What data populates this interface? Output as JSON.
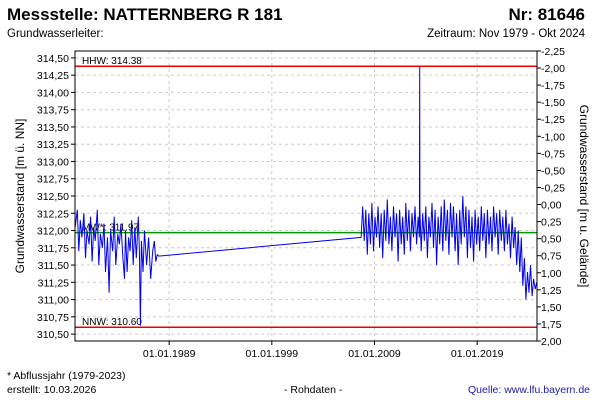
{
  "header": {
    "station_title": "Messstelle: NATTERNBERG R 181",
    "number": "Nr: 81646",
    "aquifer": "Grundwasserleiter:",
    "period": "Zeitraum: Nov 1979 - Okt 2024"
  },
  "footer": {
    "note": "* Abflussjahr (1979-2023)",
    "created": "erstellt:  10.03.2026",
    "raw": "- Rohdaten -",
    "source": "Quelle:  www.lfu.bayern.de"
  },
  "colors": {
    "series": "#0000ee",
    "hhw": "#ee0000",
    "nnw": "#ee0000",
    "mw": "#009900",
    "grid": "#cccccc"
  },
  "chart_data": {
    "type": "line",
    "ylabel_left": "Grundwasserstand [m ü. NN]",
    "ylabel_right": "Grundwasserstand [m u. Gelände]",
    "xlim": [
      1979.83,
      2024.83
    ],
    "ylim": [
      310.4,
      314.6
    ],
    "ylim_right": [
      2.0,
      -2.25
    ],
    "left_ticks": [
      "310,50",
      "310,75",
      "311,00",
      "311,25",
      "311,50",
      "311,75",
      "312,00",
      "312,25",
      "312,50",
      "312,75",
      "313,00",
      "313,25",
      "313,50",
      "313,75",
      "314,00",
      "314,25",
      "314,50"
    ],
    "right_ticks": [
      "2,00",
      "1,75",
      "1,50",
      "1,25",
      "1,00",
      "0,75",
      "0,50",
      "0,25",
      "0,00",
      "-0,25",
      "-0,50",
      "-0,75",
      "-1,00",
      "-1,25",
      "-1,50",
      "-1,75",
      "-2,00",
      "-2,25"
    ],
    "x_ticks": [
      {
        "label": "01.01.1989",
        "value": 1989.0
      },
      {
        "label": "01.01.1999",
        "value": 1999.0
      },
      {
        "label": "01.01.2009",
        "value": 2009.0
      },
      {
        "label": "01.01.2019",
        "value": 2019.0
      }
    ],
    "grid": true,
    "reference_lines": [
      {
        "label": "HHW: 314.38",
        "value": 314.38,
        "kind": "hhw"
      },
      {
        "label": "MW*: 311.97",
        "value": 311.97,
        "kind": "mw"
      },
      {
        "label": "NNW: 310.60",
        "value": 310.6,
        "kind": "nnw"
      }
    ],
    "series": [
      {
        "points": [
          [
            1979.85,
            312.05
          ],
          [
            1980.05,
            312.3
          ],
          [
            1980.2,
            311.7
          ],
          [
            1980.35,
            312.15
          ],
          [
            1980.5,
            311.9
          ],
          [
            1980.7,
            312.25
          ],
          [
            1980.85,
            311.6
          ],
          [
            1981.0,
            312.0
          ],
          [
            1981.2,
            311.8
          ],
          [
            1981.35,
            312.2
          ],
          [
            1981.5,
            311.55
          ],
          [
            1981.65,
            312.05
          ],
          [
            1981.8,
            311.85
          ],
          [
            1982.0,
            312.3
          ],
          [
            1982.15,
            311.5
          ],
          [
            1982.3,
            311.95
          ],
          [
            1982.5,
            311.75
          ],
          [
            1982.65,
            312.1
          ],
          [
            1982.8,
            311.4
          ],
          [
            1983.0,
            311.9
          ],
          [
            1983.15,
            311.1
          ],
          [
            1983.3,
            312.0
          ],
          [
            1983.5,
            311.7
          ],
          [
            1983.65,
            312.2
          ],
          [
            1983.8,
            311.5
          ],
          [
            1984.0,
            311.95
          ],
          [
            1984.15,
            311.8
          ],
          [
            1984.3,
            312.1
          ],
          [
            1984.5,
            311.6
          ],
          [
            1984.65,
            311.3
          ],
          [
            1984.75,
            312.0
          ],
          [
            1984.9,
            311.4
          ],
          [
            1985.05,
            311.9
          ],
          [
            1985.2,
            311.7
          ],
          [
            1985.35,
            312.15
          ],
          [
            1985.5,
            311.5
          ],
          [
            1985.65,
            312.05
          ],
          [
            1985.8,
            311.6
          ],
          [
            1986.0,
            312.2
          ],
          [
            1986.1,
            311.7
          ],
          [
            1986.2,
            310.62
          ],
          [
            1986.3,
            311.85
          ],
          [
            1986.45,
            311.4
          ],
          [
            1986.6,
            312.0
          ],
          [
            1986.8,
            311.5
          ],
          [
            1987.0,
            311.9
          ],
          [
            1987.2,
            311.3
          ],
          [
            1987.4,
            311.7
          ],
          [
            1987.55,
            311.85
          ],
          [
            1987.7,
            311.55
          ],
          [
            1987.85,
            311.65
          ],
          [
            1988.0,
            311.63
          ],
          [
            2007.7,
            311.9
          ],
          [
            2007.85,
            312.35
          ],
          [
            2008.0,
            311.85
          ],
          [
            2008.15,
            312.3
          ],
          [
            2008.3,
            311.65
          ],
          [
            2008.45,
            312.25
          ],
          [
            2008.6,
            311.8
          ],
          [
            2008.75,
            312.4
          ],
          [
            2008.9,
            311.7
          ],
          [
            2009.05,
            312.2
          ],
          [
            2009.2,
            311.9
          ],
          [
            2009.35,
            312.35
          ],
          [
            2009.5,
            311.75
          ],
          [
            2009.65,
            312.25
          ],
          [
            2009.8,
            311.6
          ],
          [
            2009.95,
            312.3
          ],
          [
            2010.1,
            311.85
          ],
          [
            2010.25,
            312.45
          ],
          [
            2010.4,
            311.8
          ],
          [
            2010.55,
            312.2
          ],
          [
            2010.7,
            311.7
          ],
          [
            2010.85,
            312.35
          ],
          [
            2011.0,
            311.9
          ],
          [
            2011.15,
            312.25
          ],
          [
            2011.3,
            311.55
          ],
          [
            2011.45,
            312.3
          ],
          [
            2011.6,
            311.8
          ],
          [
            2011.75,
            312.2
          ],
          [
            2011.9,
            311.65
          ],
          [
            2012.05,
            312.4
          ],
          [
            2012.2,
            311.85
          ],
          [
            2012.35,
            312.3
          ],
          [
            2012.5,
            311.7
          ],
          [
            2012.65,
            312.25
          ],
          [
            2012.8,
            311.9
          ],
          [
            2012.95,
            312.35
          ],
          [
            2013.1,
            311.8
          ],
          [
            2013.25,
            312.2
          ],
          [
            2013.38,
            311.9
          ],
          [
            2013.4,
            314.38
          ],
          [
            2013.42,
            312.3
          ],
          [
            2013.55,
            311.7
          ],
          [
            2013.7,
            312.25
          ],
          [
            2013.85,
            311.85
          ],
          [
            2014.0,
            312.35
          ],
          [
            2014.15,
            311.6
          ],
          [
            2014.3,
            312.2
          ],
          [
            2014.45,
            311.9
          ],
          [
            2014.6,
            312.4
          ],
          [
            2014.75,
            311.75
          ],
          [
            2014.9,
            312.3
          ],
          [
            2015.05,
            311.5
          ],
          [
            2015.2,
            312.2
          ],
          [
            2015.35,
            311.8
          ],
          [
            2015.5,
            312.35
          ],
          [
            2015.65,
            311.7
          ],
          [
            2015.8,
            312.45
          ],
          [
            2015.95,
            311.85
          ],
          [
            2016.1,
            312.3
          ],
          [
            2016.25,
            311.65
          ],
          [
            2016.4,
            312.4
          ],
          [
            2016.55,
            311.9
          ],
          [
            2016.7,
            312.35
          ],
          [
            2016.85,
            311.7
          ],
          [
            2017.0,
            312.25
          ],
          [
            2017.15,
            311.5
          ],
          [
            2017.3,
            312.3
          ],
          [
            2017.45,
            311.8
          ],
          [
            2017.6,
            312.5
          ],
          [
            2017.75,
            311.9
          ],
          [
            2017.9,
            312.35
          ],
          [
            2018.05,
            311.6
          ],
          [
            2018.2,
            312.3
          ],
          [
            2018.35,
            311.75
          ],
          [
            2018.5,
            312.2
          ],
          [
            2018.65,
            311.55
          ],
          [
            2018.8,
            312.3
          ],
          [
            2018.95,
            311.8
          ],
          [
            2019.1,
            312.2
          ],
          [
            2019.25,
            311.7
          ],
          [
            2019.4,
            312.35
          ],
          [
            2019.55,
            311.85
          ],
          [
            2019.7,
            312.25
          ],
          [
            2019.85,
            311.6
          ],
          [
            2020.0,
            312.3
          ],
          [
            2020.15,
            311.8
          ],
          [
            2020.3,
            312.2
          ],
          [
            2020.45,
            311.7
          ],
          [
            2020.6,
            312.35
          ],
          [
            2020.75,
            311.9
          ],
          [
            2020.9,
            312.25
          ],
          [
            2021.05,
            311.65
          ],
          [
            2021.2,
            312.3
          ],
          [
            2021.35,
            311.85
          ],
          [
            2021.5,
            312.2
          ],
          [
            2021.65,
            311.7
          ],
          [
            2021.8,
            312.3
          ],
          [
            2021.95,
            311.8
          ],
          [
            2022.1,
            312.1
          ],
          [
            2022.25,
            311.6
          ],
          [
            2022.4,
            312.2
          ],
          [
            2022.55,
            311.75
          ],
          [
            2022.7,
            312.05
          ],
          [
            2022.85,
            311.5
          ],
          [
            2023.0,
            312.0
          ],
          [
            2023.15,
            311.4
          ],
          [
            2023.3,
            311.9
          ],
          [
            2023.45,
            311.2
          ],
          [
            2023.6,
            311.6
          ],
          [
            2023.75,
            311.0
          ],
          [
            2023.9,
            311.4
          ],
          [
            2024.05,
            311.1
          ],
          [
            2024.2,
            311.5
          ],
          [
            2024.35,
            311.05
          ],
          [
            2024.5,
            311.3
          ],
          [
            2024.65,
            311.15
          ],
          [
            2024.8,
            311.25
          ]
        ]
      }
    ]
  }
}
